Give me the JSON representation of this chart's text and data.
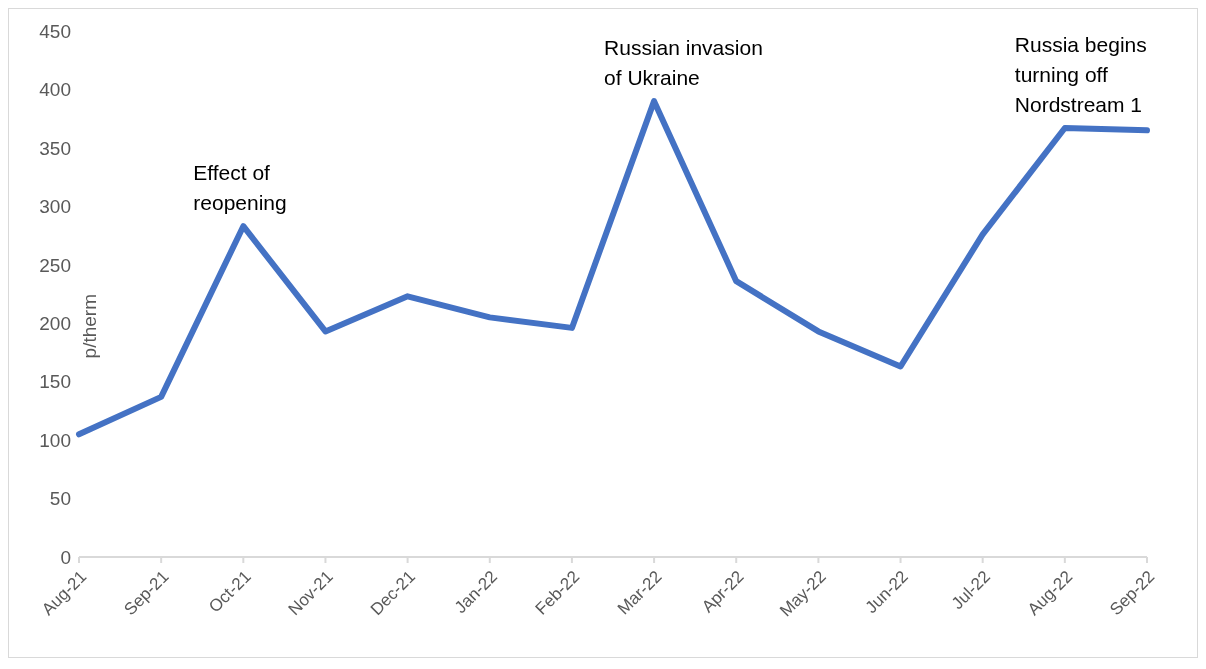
{
  "chart_data": {
    "type": "line",
    "ylabel": "p/therm",
    "categories": [
      "Aug-21",
      "Sep-21",
      "Oct-21",
      "Nov-21",
      "Dec-21",
      "Jan-22",
      "Feb-22",
      "Mar-22",
      "Apr-22",
      "May-22",
      "Jun-22",
      "Jul-22",
      "Aug-22",
      "Sep-22"
    ],
    "series": [
      {
        "color": "#4472c4",
        "values": [
          105,
          137,
          283,
          193,
          223,
          205,
          196,
          390,
          236,
          193,
          163,
          276,
          367,
          365
        ]
      }
    ],
    "ylim": [
      0,
      450
    ],
    "yticks": [
      0,
      50,
      100,
      150,
      200,
      250,
      300,
      350,
      400,
      450
    ],
    "grid": false,
    "marker": "none",
    "line_style": "solid",
    "annotations": [
      {
        "text": "Effect of reopening",
        "x": "Oct-21",
        "y": 283
      },
      {
        "text": "Russian invasion of Ukraine",
        "x": "Mar-22",
        "y": 390
      },
      {
        "text": "Russia begins turning off Nordstream 1",
        "x": "Aug-22",
        "y": 367
      }
    ]
  }
}
